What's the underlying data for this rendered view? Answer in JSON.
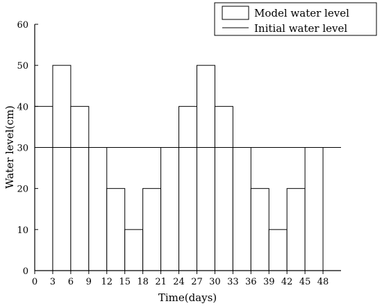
{
  "chart_data": {
    "type": "bar",
    "xlabel": "Time(days)",
    "ylabel": "Water level(cm)",
    "ylim": [
      0,
      60
    ],
    "yticks": [
      0,
      10,
      20,
      30,
      40,
      50,
      60
    ],
    "xticks": [
      "0",
      "3",
      "6",
      "9",
      "12",
      "15",
      "18",
      "21",
      "24",
      "27",
      "30",
      "33",
      "36",
      "39",
      "42",
      "45",
      "48"
    ],
    "bar_width_days": 3,
    "series": [
      {
        "name": "Model water level",
        "style": "outlined bars",
        "x": [
          3,
          6,
          9,
          12,
          15,
          18,
          21,
          24,
          27,
          30,
          33,
          36,
          39,
          42,
          45,
          48
        ],
        "values": [
          40,
          50,
          40,
          30,
          20,
          10,
          20,
          30,
          40,
          50,
          40,
          30,
          20,
          10,
          20,
          30
        ]
      },
      {
        "name": "Initial water level",
        "style": "line",
        "value": 30
      }
    ],
    "legend_position": "top-right",
    "colors": {
      "stroke": "#000000",
      "fill": "#ffffff"
    }
  }
}
